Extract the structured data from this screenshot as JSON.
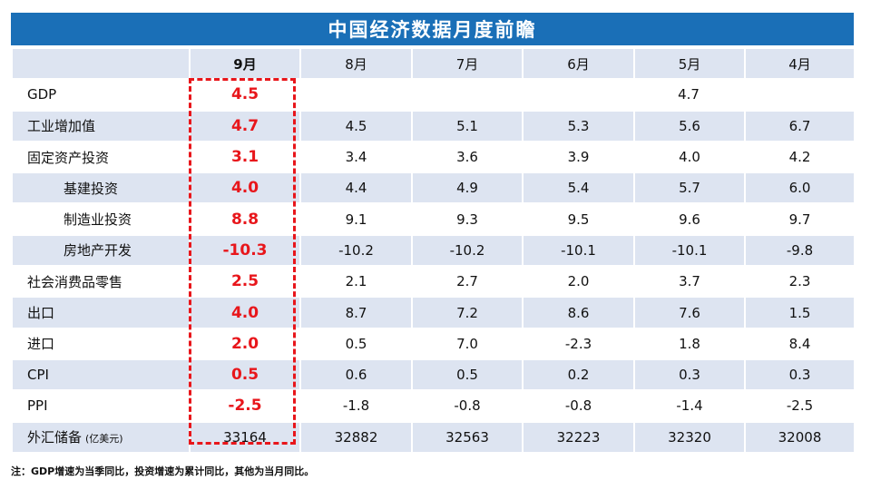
{
  "title": "中国经济数据月度前瞻",
  "columns": [
    "9月",
    "8月",
    "7月",
    "6月",
    "5月",
    "4月"
  ],
  "gdp": {
    "label": "GDP",
    "sep": "4.5",
    "q2": "4.7"
  },
  "rows": [
    {
      "label": "工业增加值",
      "values": [
        "4.7",
        "4.5",
        "5.1",
        "5.3",
        "5.6",
        "6.7"
      ]
    },
    {
      "label": "固定资产投资",
      "values": [
        "3.1",
        "3.4",
        "3.6",
        "3.9",
        "4.0",
        "4.2"
      ]
    },
    {
      "label": "基建投资",
      "values": [
        "4.0",
        "4.4",
        "4.9",
        "5.4",
        "5.7",
        "6.0"
      ]
    },
    {
      "label": "制造业投资",
      "values": [
        "8.8",
        "9.1",
        "9.3",
        "9.5",
        "9.6",
        "9.7"
      ]
    },
    {
      "label": "房地产开发",
      "values": [
        "-10.3",
        "-10.2",
        "-10.2",
        "-10.1",
        "-10.1",
        "-9.8"
      ]
    },
    {
      "label": "社会消费品零售",
      "values": [
        "2.5",
        "2.1",
        "2.7",
        "2.0",
        "3.7",
        "2.3"
      ]
    },
    {
      "label": "出口",
      "values": [
        "4.0",
        "8.7",
        "7.2",
        "8.6",
        "7.6",
        "1.5"
      ]
    },
    {
      "label": "进口",
      "values": [
        "2.0",
        "0.5",
        "7.0",
        "-2.3",
        "1.8",
        "8.4"
      ]
    },
    {
      "label": "CPI",
      "values": [
        "0.5",
        "0.6",
        "0.5",
        "0.2",
        "0.3",
        "0.3"
      ]
    },
    {
      "label": "PPI",
      "values": [
        "-2.5",
        "-1.8",
        "-0.8",
        "-0.8",
        "-1.4",
        "-2.5"
      ]
    }
  ],
  "fx": {
    "label": "外汇储备",
    "unit": "(亿美元)",
    "values": [
      "33164",
      "32882",
      "32563",
      "32223",
      "32320",
      "32008"
    ]
  },
  "footnote": "注：GDP增速为当季同比，投资增速为累计同比，其他为当月同比。",
  "colors": {
    "title_bg": "#1a6fb7",
    "row_alt": "#dde4f1",
    "highlight": "#e8161b"
  }
}
